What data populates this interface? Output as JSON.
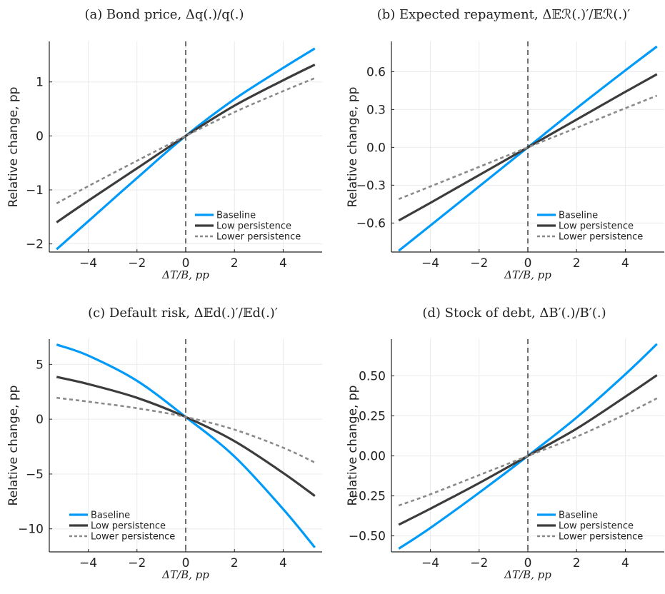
{
  "legend_labels": [
    "Baseline",
    "Low persistence",
    "Lower persistence"
  ],
  "colors": {
    "baseline": "#009af9",
    "low": "#3c3c3c",
    "lower": "#8a8a8a",
    "grid": "#ebebeb",
    "axis": "#222222"
  },
  "chart_data": [
    {
      "type": "line",
      "title": "(a) Bond price, Δq(.)/q(.)",
      "xlabel": "ΔT/B, pp",
      "ylabel": "Relative change, pp",
      "xlim": [
        -5.6,
        5.6
      ],
      "ylim": [
        -2.15,
        1.75
      ],
      "xticks": [
        -4,
        -2,
        0,
        2,
        4
      ],
      "xtick_labels": [
        "−4",
        "−2",
        "0",
        "2",
        "4"
      ],
      "yticks": [
        -2,
        -1,
        0,
        1
      ],
      "ytick_labels": [
        "−2",
        "−1",
        "0",
        "1"
      ],
      "vline_x": 0,
      "grid": true,
      "legend_position": "bottom-right",
      "x": [
        -5.3,
        -4,
        -2,
        0,
        2,
        4,
        5.3
      ],
      "series": [
        {
          "name": "Baseline",
          "values": [
            -2.1,
            -1.58,
            -0.78,
            0.0,
            0.68,
            1.26,
            1.62
          ]
        },
        {
          "name": "Low persistence",
          "values": [
            -1.6,
            -1.2,
            -0.6,
            0.0,
            0.56,
            1.03,
            1.32
          ]
        },
        {
          "name": "Lower persistence",
          "values": [
            -1.25,
            -0.93,
            -0.46,
            0.0,
            0.44,
            0.83,
            1.07
          ]
        }
      ]
    },
    {
      "type": "line",
      "title": "(b) Expected repayment, Δ𝔼ℛ(.)′/𝔼ℛ(.)′",
      "xlabel": "ΔT/B, pp",
      "ylabel": "Relative change, pp",
      "xlim": [
        -5.6,
        5.6
      ],
      "ylim": [
        -0.83,
        0.84
      ],
      "xticks": [
        -4,
        -2,
        0,
        2,
        4
      ],
      "xtick_labels": [
        "−4",
        "−2",
        "0",
        "2",
        "4"
      ],
      "yticks": [
        -0.6,
        -0.3,
        0,
        0.3,
        0.6
      ],
      "ytick_labels": [
        "−0.6",
        "−0.3",
        "0.0",
        "0.3",
        "0.6"
      ],
      "vline_x": 0,
      "grid": true,
      "legend_position": "bottom-right",
      "x": [
        -5.3,
        -4,
        -2,
        0,
        2,
        4,
        5.3
      ],
      "series": [
        {
          "name": "Baseline",
          "values": [
            -0.82,
            -0.62,
            -0.31,
            0.0,
            0.31,
            0.61,
            0.8
          ]
        },
        {
          "name": "Low persistence",
          "values": [
            -0.58,
            -0.44,
            -0.22,
            0.0,
            0.22,
            0.44,
            0.58
          ]
        },
        {
          "name": "Lower persistence",
          "values": [
            -0.41,
            -0.31,
            -0.155,
            0.0,
            0.155,
            0.31,
            0.41
          ]
        }
      ]
    },
    {
      "type": "line",
      "title": "(c) Default risk, Δ𝔼d(.)′/𝔼d(.)′",
      "xlabel": "ΔT/B, pp",
      "ylabel": "Relative change, pp",
      "xlim": [
        -5.6,
        5.6
      ],
      "ylim": [
        -12.1,
        7.3
      ],
      "xticks": [
        -4,
        -2,
        0,
        2,
        4
      ],
      "xtick_labels": [
        "−4",
        "−2",
        "0",
        "2",
        "4"
      ],
      "yticks": [
        -10,
        -5,
        0,
        5
      ],
      "ytick_labels": [
        "−10",
        "−5",
        "0",
        "5"
      ],
      "vline_x": 0,
      "grid": true,
      "legend_position": "bottom-left",
      "x": [
        -5.3,
        -4,
        -2,
        0,
        2,
        4,
        5.3
      ],
      "series": [
        {
          "name": "Baseline",
          "values": [
            6.8,
            5.8,
            3.5,
            0.2,
            -3.4,
            -8.2,
            -11.7
          ]
        },
        {
          "name": "Low persistence",
          "values": [
            3.85,
            3.2,
            1.95,
            0.2,
            -2.0,
            -4.9,
            -7.0
          ]
        },
        {
          "name": "Lower persistence",
          "values": [
            1.95,
            1.6,
            1.0,
            0.2,
            -0.95,
            -2.6,
            -3.95
          ]
        }
      ]
    },
    {
      "type": "line",
      "title": "(d) Stock of debt, ΔB′(.)/B′(.)",
      "xlabel": "ΔT/B, pp",
      "ylabel": "Relative change, pp",
      "xlim": [
        -5.6,
        5.6
      ],
      "ylim": [
        -0.6,
        0.73
      ],
      "xticks": [
        -4,
        -2,
        0,
        2,
        4
      ],
      "xtick_labels": [
        "−4",
        "−2",
        "0",
        "2",
        "4"
      ],
      "yticks": [
        -0.5,
        -0.25,
        0,
        0.25,
        0.5
      ],
      "ytick_labels": [
        "−0.50",
        "−0.25",
        "0.00",
        "0.25",
        "0.50"
      ],
      "vline_x": 0,
      "grid": true,
      "legend_position": "bottom-right",
      "x": [
        -5.3,
        -4,
        -2,
        0,
        2,
        4,
        5.3
      ],
      "series": [
        {
          "name": "Baseline",
          "values": [
            -0.58,
            -0.45,
            -0.23,
            0.0,
            0.24,
            0.51,
            0.7
          ]
        },
        {
          "name": "Low persistence",
          "values": [
            -0.43,
            -0.33,
            -0.17,
            0.0,
            0.17,
            0.37,
            0.505
          ]
        },
        {
          "name": "Lower persistence",
          "values": [
            -0.31,
            -0.24,
            -0.12,
            0.0,
            0.12,
            0.26,
            0.36
          ]
        }
      ]
    }
  ]
}
